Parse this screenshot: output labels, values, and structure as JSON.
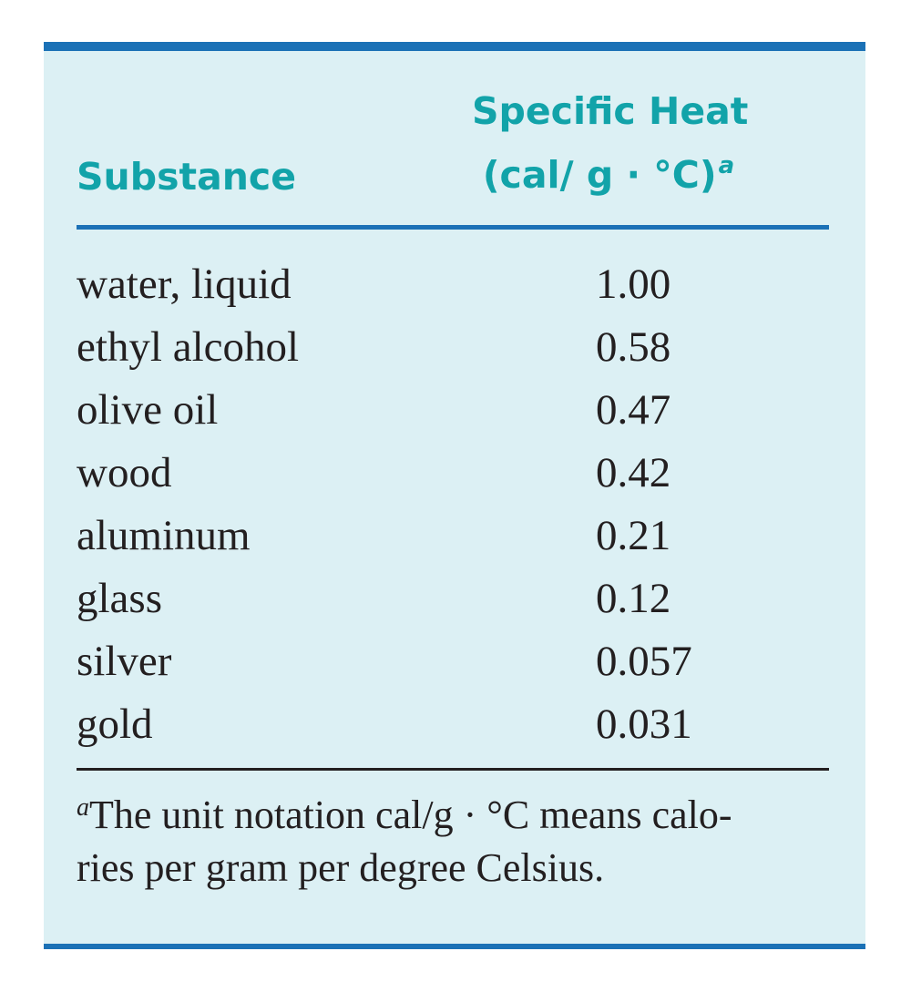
{
  "table": {
    "header": {
      "substance": "Substance",
      "specific_heat_line1": "Specific Heat",
      "specific_heat_line2": "(cal/ g · °C)",
      "specific_heat_note_marker": "a"
    },
    "rows": [
      {
        "substance": "water, liquid",
        "specific_heat": "1.00"
      },
      {
        "substance": "ethyl alcohol",
        "specific_heat": "0.58"
      },
      {
        "substance": "olive oil",
        "specific_heat": "0.47"
      },
      {
        "substance": "wood",
        "specific_heat": "0.42"
      },
      {
        "substance": "aluminum",
        "specific_heat": "0.21"
      },
      {
        "substance": "glass",
        "specific_heat": "0.12"
      },
      {
        "substance": "silver",
        "specific_heat": "0.057"
      },
      {
        "substance": "gold",
        "specific_heat": "0.031"
      }
    ],
    "footnote": {
      "marker": "a",
      "line1": "The unit notation cal/g · °C means calo-",
      "line2": "ries per gram per degree Celsius."
    }
  },
  "colors": {
    "panel_background": "#dcf0f4",
    "border_accent": "#1b71b6",
    "header_text": "#12a3a9",
    "body_text": "#231f20"
  }
}
